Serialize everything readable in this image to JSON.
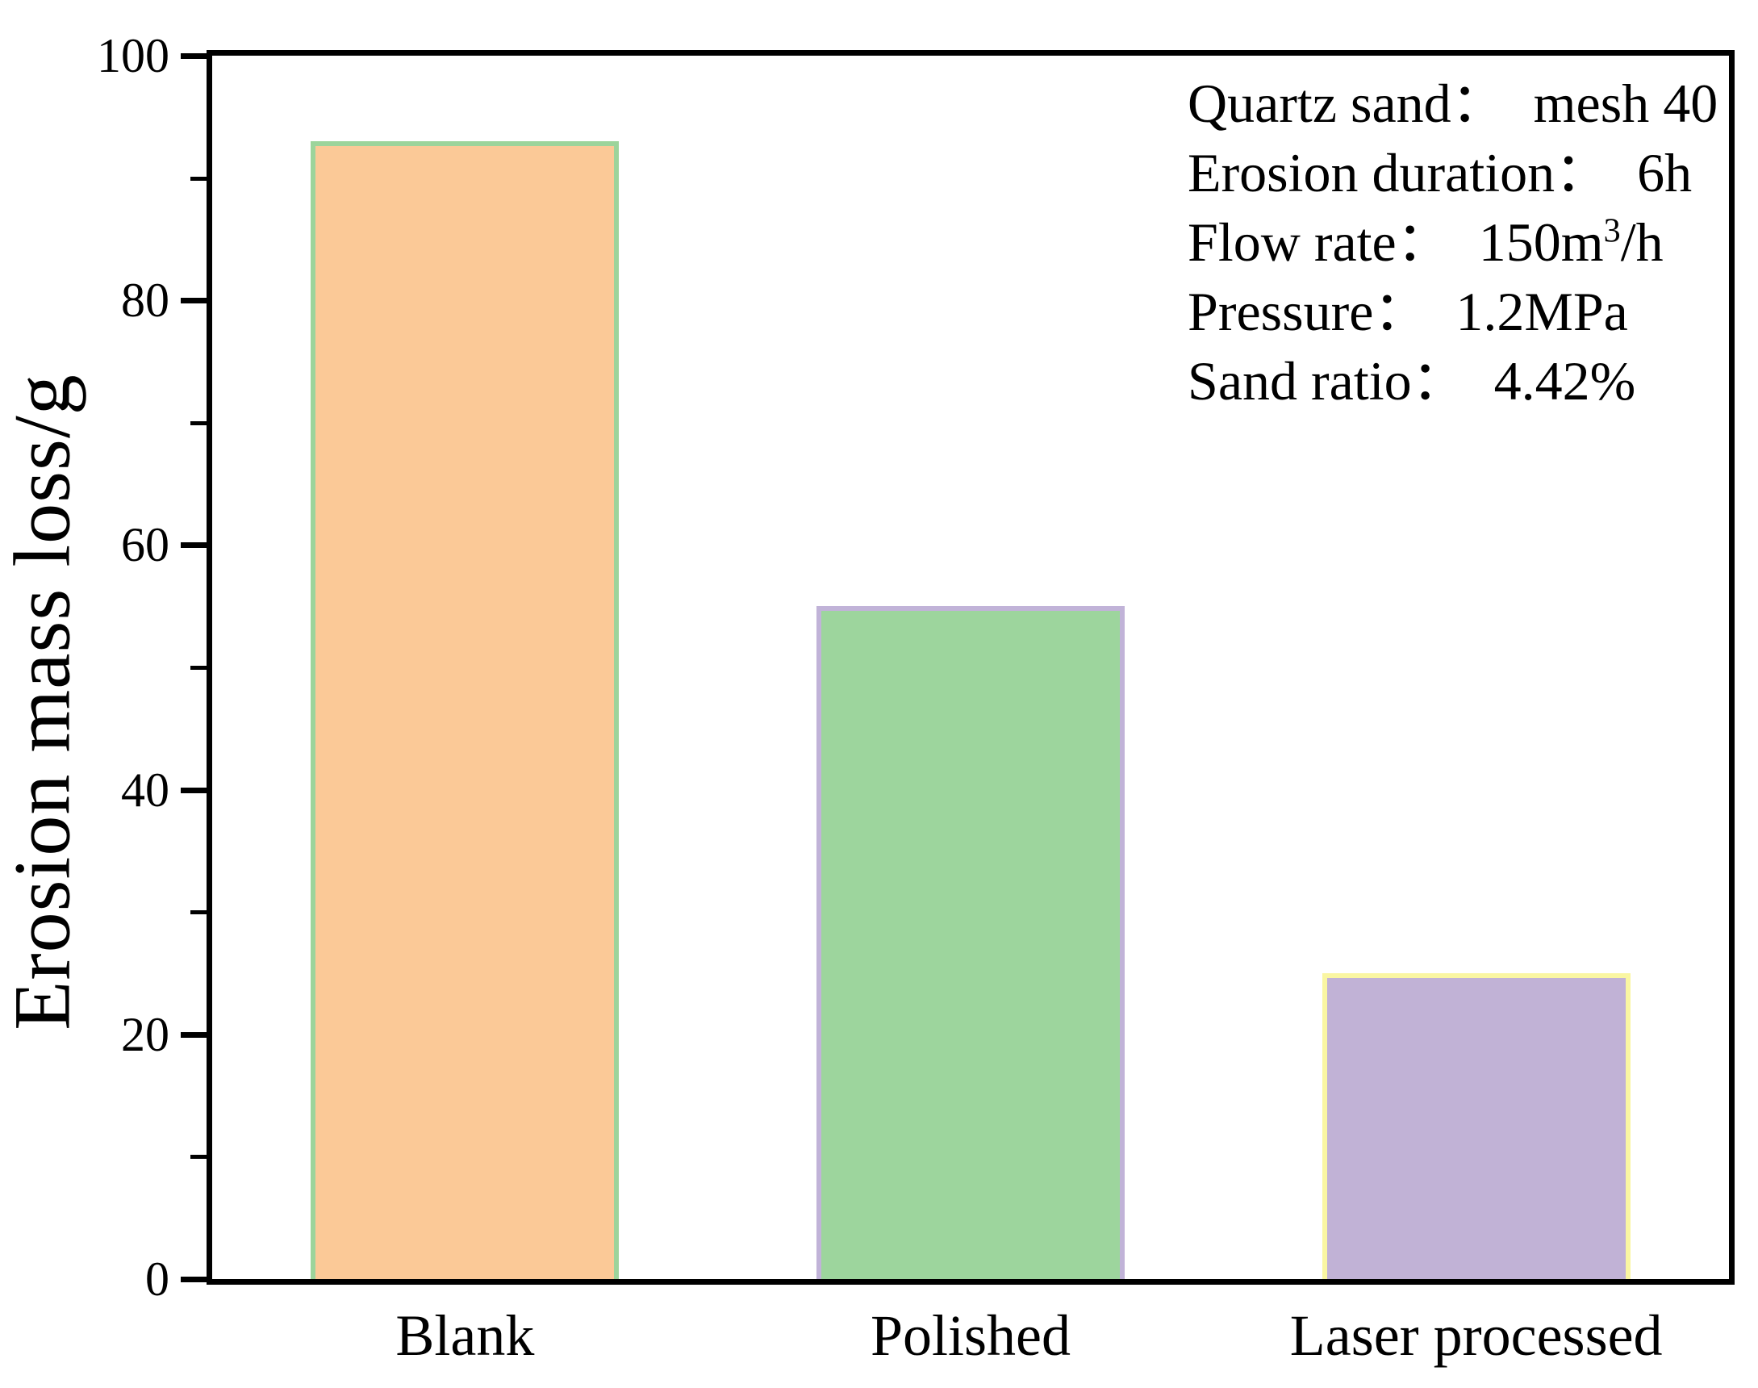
{
  "chart_data": {
    "type": "bar",
    "categories": [
      "Blank",
      "Polished",
      "Laser processed"
    ],
    "values": [
      93,
      55,
      25
    ],
    "title": "",
    "xlabel": "",
    "ylabel": "Erosion mass loss/g",
    "ylim": [
      0,
      100
    ],
    "yticks": [
      0,
      20,
      40,
      60,
      80,
      100
    ],
    "minor_yticks": [
      10,
      30,
      50,
      70,
      90
    ],
    "grid": false,
    "legend_position": "none",
    "bar_fill_colors": [
      "#fbc997",
      "#9dd59d",
      "#c1b2d6"
    ],
    "bar_edge_colors": [
      "#9cd49b",
      "#c1b3d8",
      "#faf6a2"
    ],
    "axis_color": "#000000",
    "background_color": "#ffffff",
    "annotation_lines": [
      {
        "text": "Quartz sand：  mesh 40"
      },
      {
        "text": "Erosion duration：  6h"
      },
      {
        "pre": "Flow rate：  150m",
        "sup": "3",
        "post": "/h"
      },
      {
        "text": "Pressure：  1.2MPa"
      },
      {
        "text": "Sand ratio：  4.42%"
      }
    ]
  }
}
